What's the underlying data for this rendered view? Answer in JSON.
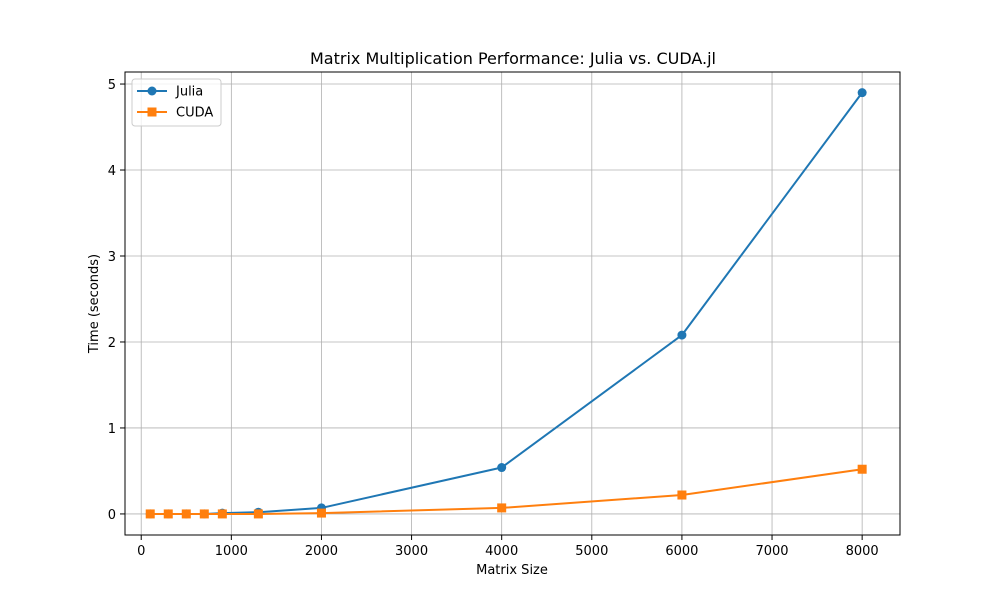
{
  "chart_data": {
    "type": "line",
    "title": "Matrix Multiplication Performance: Julia vs. CUDA.jl",
    "xlabel": "Matrix Size",
    "ylabel": "Time (seconds)",
    "xlim": [
      -180,
      8420
    ],
    "ylim": [
      -0.245,
      5.14
    ],
    "xticks": [
      0,
      1000,
      2000,
      3000,
      4000,
      5000,
      6000,
      7000,
      8000
    ],
    "xtick_labels": [
      "0",
      "1000",
      "2000",
      "3000",
      "4000",
      "5000",
      "6000",
      "7000",
      "8000"
    ],
    "yticks": [
      0,
      1,
      2,
      3,
      4,
      5
    ],
    "ytick_labels": [
      "0",
      "1",
      "2",
      "3",
      "4",
      "5"
    ],
    "grid": true,
    "legend_position": "upper-left",
    "series": [
      {
        "name": "Julia",
        "color": "#1f77b4",
        "marker": "circle",
        "x": [
          100,
          300,
          500,
          700,
          900,
          1300,
          2000,
          4000,
          6000,
          8000
        ],
        "y": [
          0.0,
          0.0,
          0.0,
          0.0,
          0.01,
          0.02,
          0.07,
          0.54,
          2.08,
          4.9
        ]
      },
      {
        "name": "CUDA",
        "color": "#ff7f0e",
        "marker": "square",
        "x": [
          100,
          300,
          500,
          700,
          900,
          1300,
          2000,
          4000,
          6000,
          8000
        ],
        "y": [
          0.0,
          0.0,
          0.0,
          0.0,
          0.0,
          0.0,
          0.01,
          0.07,
          0.22,
          0.52
        ]
      }
    ]
  }
}
